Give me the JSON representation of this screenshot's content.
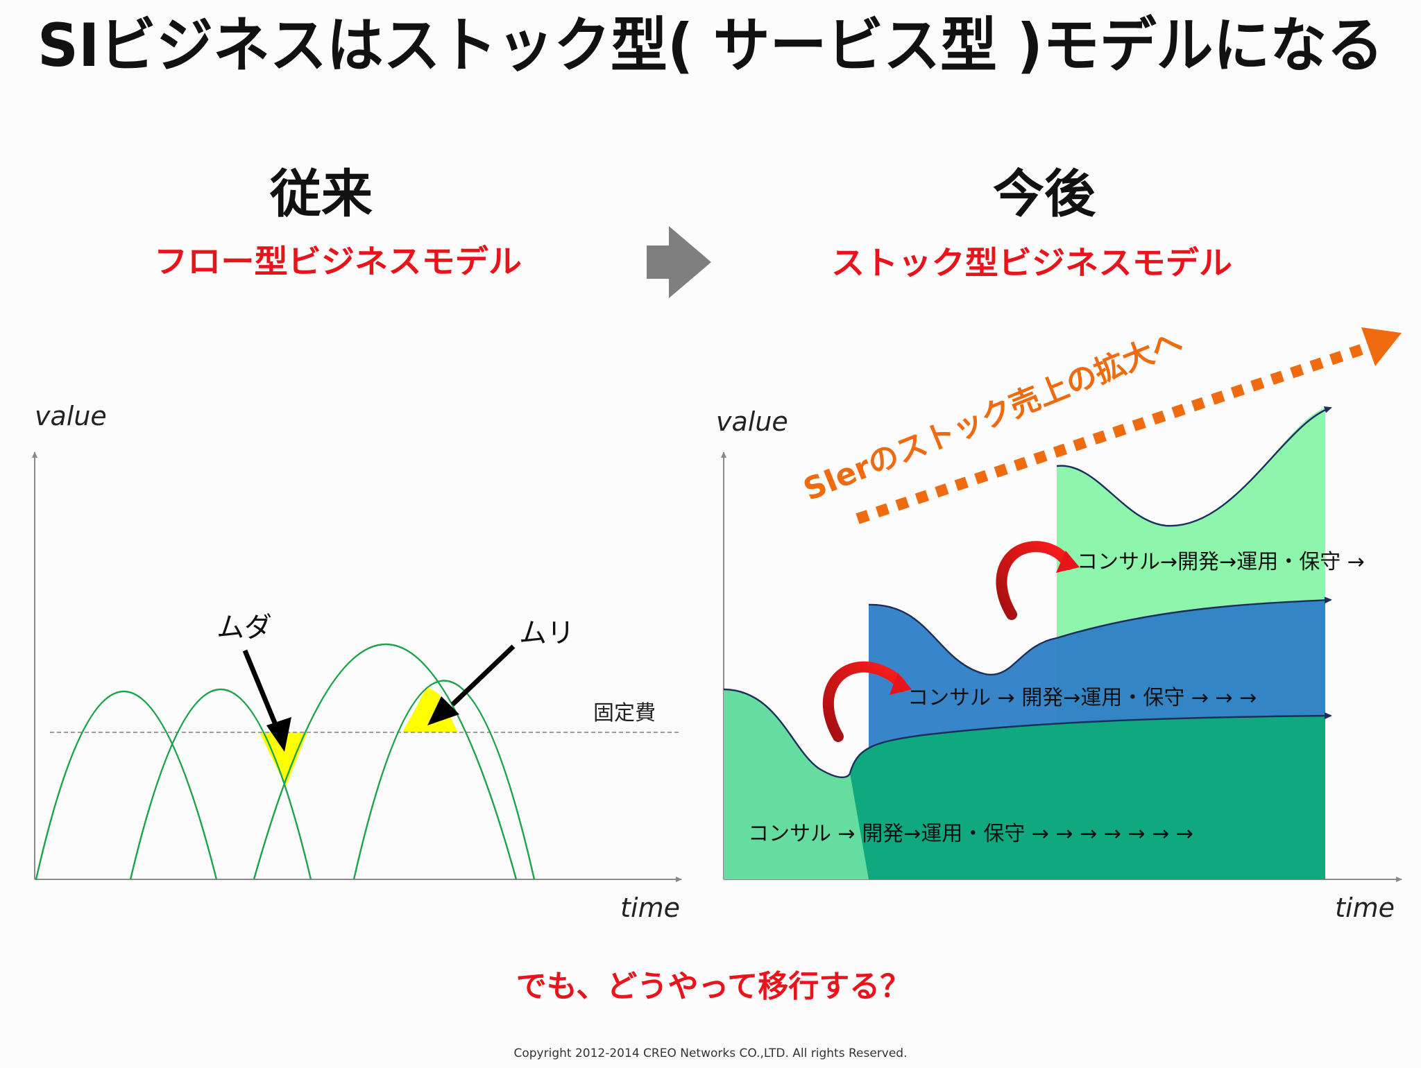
{
  "title": "SIビジネスはストック型( サービス型 )モデルになる",
  "left": {
    "heading": "従来",
    "subheading": "フロー型ビジネスモデル",
    "axis_y": "value",
    "axis_x": "time",
    "fixed_cost_label": "固定費",
    "label_muda": "ムダ",
    "label_muri": "ムリ"
  },
  "right": {
    "heading": "今後",
    "subheading": "ストック型ビジネスモデル",
    "axis_y": "value",
    "axis_x": "time",
    "growth_label": "SIerのストック売上の拡大へ",
    "flow_top": "コンサル→開発→運用・保守 →",
    "flow_middle": "コンサル → 開発→運用・保守 → → →",
    "flow_bottom": "コンサル → 開発→運用・保守 → → → → → → →"
  },
  "question": "でも、どうやって移行する？",
  "copyright": "Copyright 2012-2014 CREO Networks CO.,LTD. All rights Reserved.",
  "colors": {
    "title": "#111111",
    "accent_red": "#e8131b",
    "orange": "#f06a0f",
    "arrow_gray": "#7f7f7f",
    "curve_green": "#1aa34a",
    "yellow": "#ffff00",
    "stock_light_green": "#8ef5ad",
    "stock_blue": "#2e7ec7",
    "stock_teal": "#10a97f"
  }
}
